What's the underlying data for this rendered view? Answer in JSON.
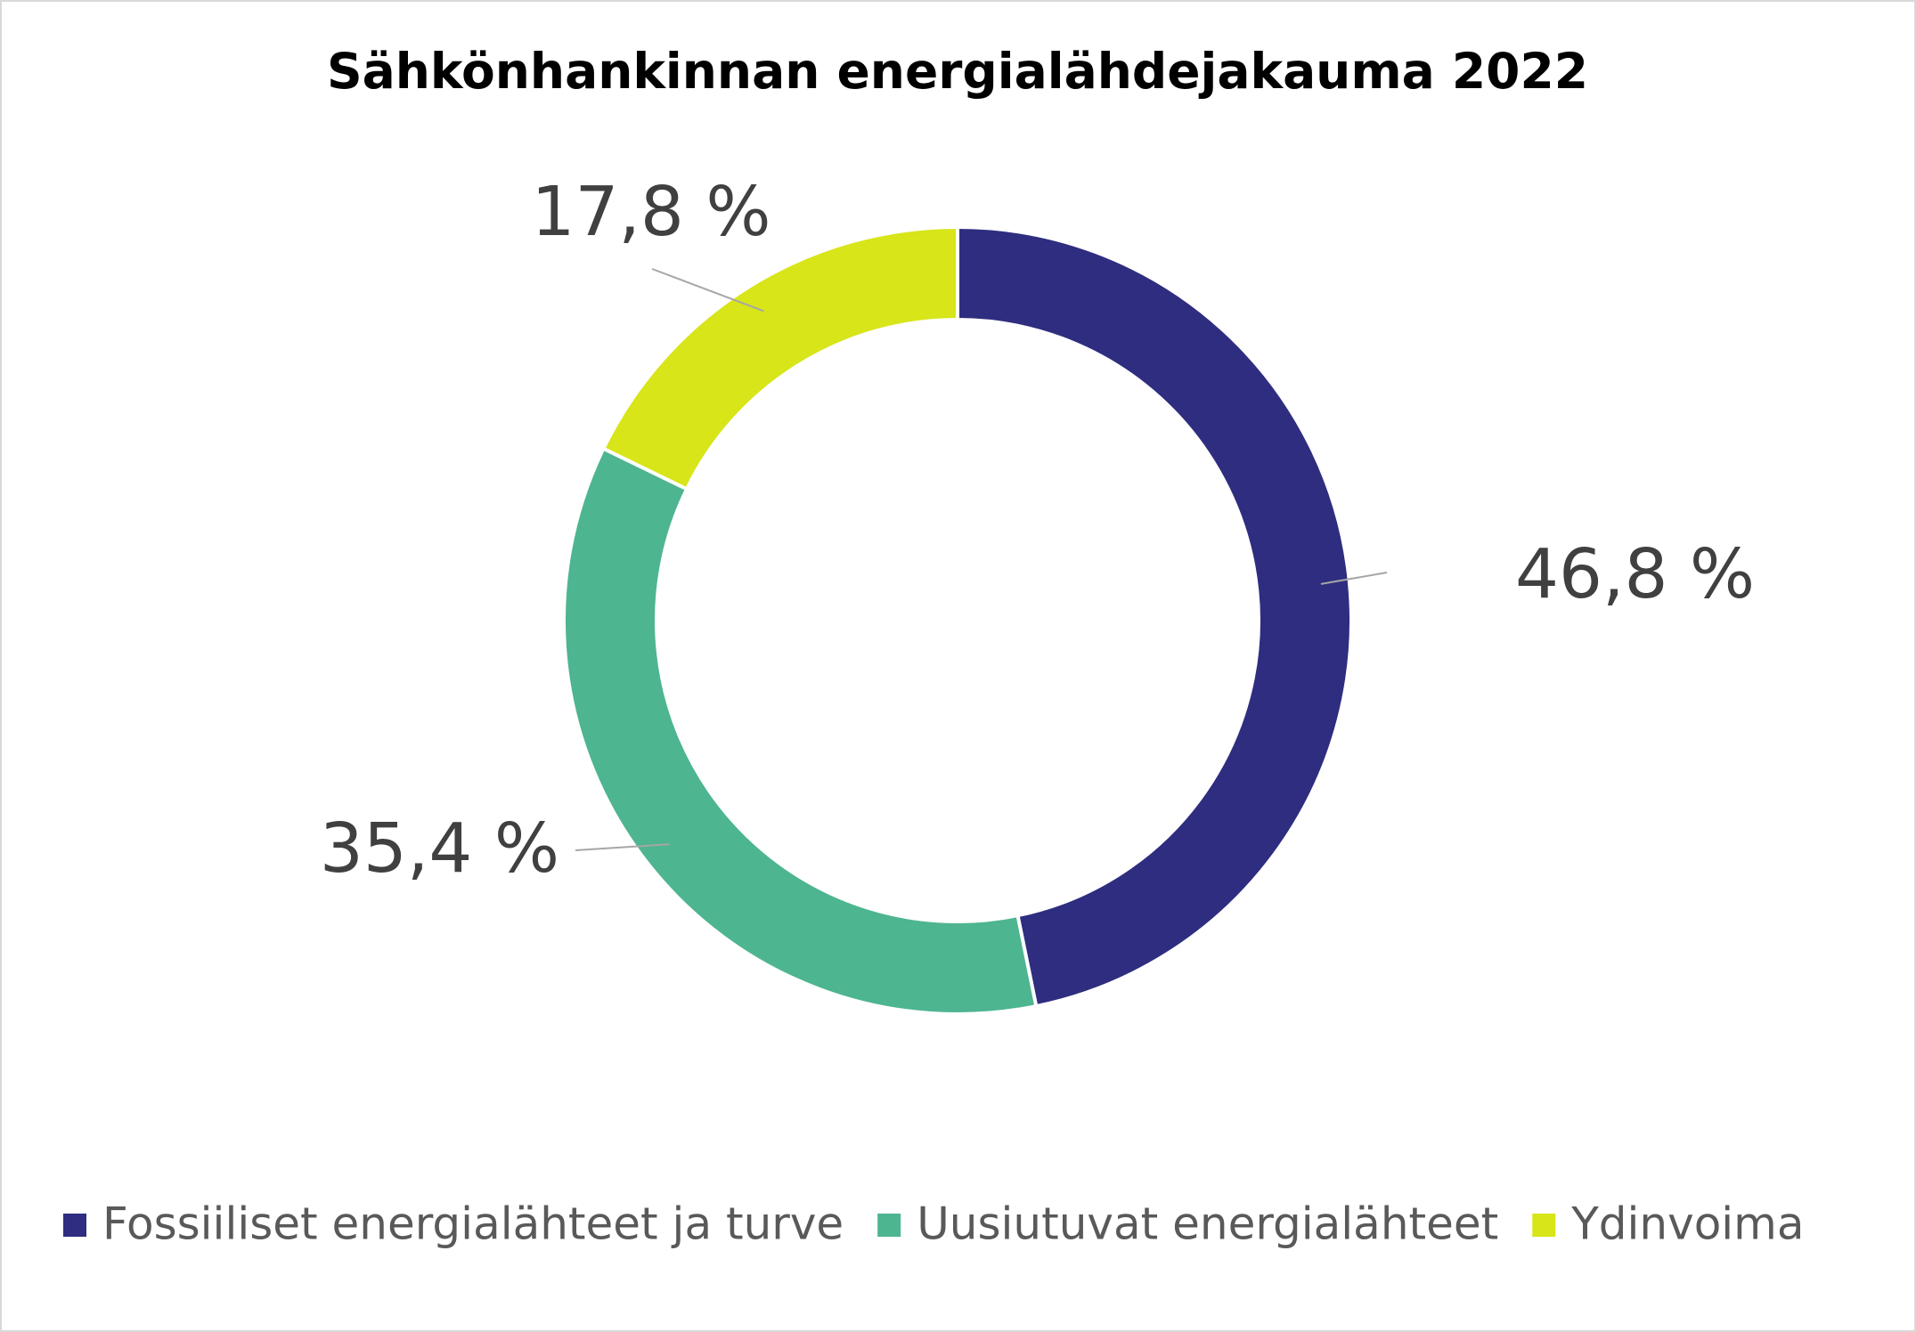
{
  "chart_data": {
    "type": "donut",
    "title": "Sähkönhankinnan energialähdejakauma 2022",
    "categories": [
      "Fossiiliset energialähteet ja turve",
      "Uusiutuvat energialähteet",
      "Ydinvoima"
    ],
    "values": [
      46.8,
      35.4,
      17.8
    ],
    "value_labels": [
      "46,8 %",
      "35,4 %",
      "17,8 %"
    ],
    "colors": [
      "#2e2d7f",
      "#4db590",
      "#d7e519"
    ],
    "legend": "bottom"
  }
}
